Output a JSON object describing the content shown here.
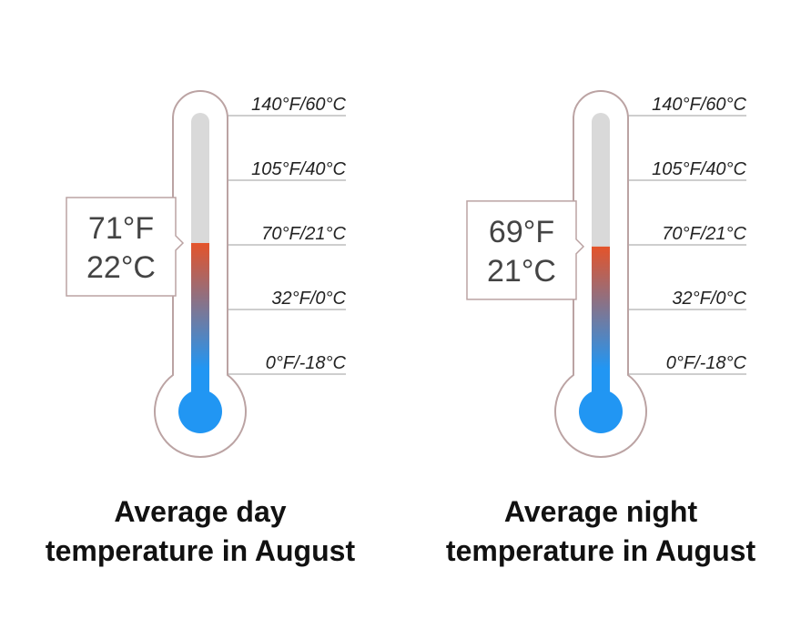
{
  "chart_data": [
    {
      "type": "thermometer",
      "title": [
        "Average day",
        "temperature in August"
      ],
      "value": 71,
      "value_label": "71°F",
      "value_celsius": 22,
      "value_celsius_label": "22°C",
      "ticks": [
        {
          "value": 140,
          "label": "140°F/60°C"
        },
        {
          "value": 105,
          "label": "105°F/40°C"
        },
        {
          "value": 70,
          "label": "70°F/21°C"
        },
        {
          "value": 32,
          "label": "32°F/0°C"
        },
        {
          "value": 0,
          "label": "0°F/-18°C"
        }
      ],
      "fill_top_color": "#e4532a",
      "fill_bottom_color": "#2196f3",
      "track_color": "#d9d9d9",
      "outline_color": "#bba3a3"
    },
    {
      "type": "thermometer",
      "title": [
        "Average night",
        "temperature in August"
      ],
      "value": 69,
      "value_label": "69°F",
      "value_celsius": 21,
      "value_celsius_label": "21°C",
      "ticks": [
        {
          "value": 140,
          "label": "140°F/60°C"
        },
        {
          "value": 105,
          "label": "105°F/40°C"
        },
        {
          "value": 70,
          "label": "70°F/21°C"
        },
        {
          "value": 32,
          "label": "32°F/0°C"
        },
        {
          "value": 0,
          "label": "0°F/-18°C"
        }
      ],
      "fill_top_color": "#e4532a",
      "fill_bottom_color": "#2196f3",
      "track_color": "#d9d9d9",
      "outline_color": "#bba3a3"
    }
  ]
}
